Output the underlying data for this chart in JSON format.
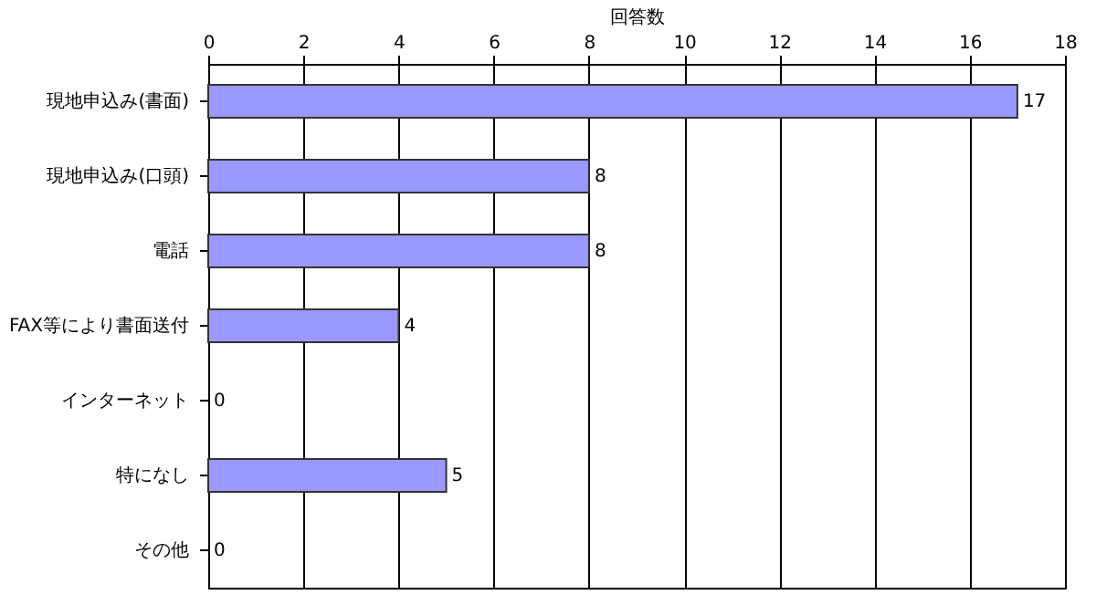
{
  "chart_data": {
    "type": "bar",
    "orientation": "horizontal",
    "xlabel": "回答数",
    "categories": [
      "現地申込み(書面)",
      "現地申込み(口頭)",
      "電話",
      "FAX等により書面送付",
      "インターネット",
      "特になし",
      "その他"
    ],
    "values": [
      17,
      8,
      8,
      4,
      0,
      5,
      0
    ],
    "color": "#9999ff",
    "xlim": [
      0,
      18
    ],
    "xticks": [
      0,
      2,
      4,
      6,
      8,
      10,
      12,
      14,
      16,
      18
    ],
    "grid": "x",
    "data_labels": true
  }
}
